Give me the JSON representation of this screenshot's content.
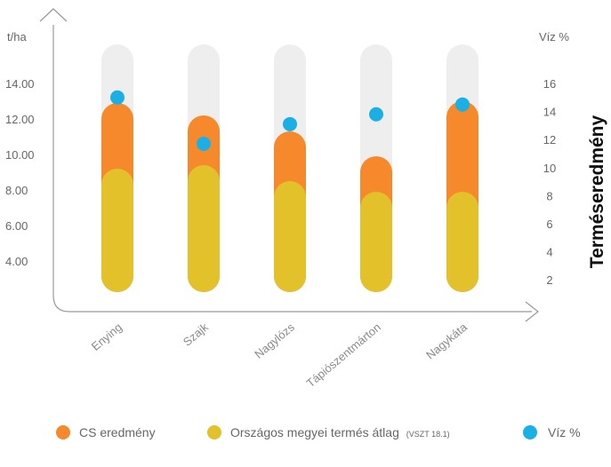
{
  "chart_data": {
    "type": "bar",
    "side_title": "Terméseredmény",
    "left_axis": {
      "unit": "t/ha",
      "ticks": [
        "4.00",
        "6.00",
        "8.00",
        "10.00",
        "12.00",
        "14.00"
      ]
    },
    "right_axis": {
      "unit": "Víz %",
      "ticks": [
        "2",
        "4",
        "6",
        "8",
        "10",
        "12",
        "14",
        "16"
      ]
    },
    "categories": [
      "Enying",
      "Szajk",
      "Nagylózs",
      "Tápiószentmárton",
      "Nagykáta"
    ],
    "series": [
      {
        "name": "CS eredmény",
        "color": "#f5892c",
        "values": [
          12.9,
          12.2,
          11.3,
          9.9,
          13.0
        ]
      },
      {
        "name": "Országos megyei termés átlag",
        "color": "#e3c12a",
        "values": [
          9.2,
          9.4,
          8.5,
          7.9,
          7.9
        ]
      },
      {
        "name": "Víz %",
        "color": "#1ab0e6",
        "values": [
          15.0,
          11.7,
          13.1,
          13.8,
          14.5
        ]
      }
    ],
    "legend": [
      {
        "label": "CS eredmény",
        "note": "",
        "color": "#f5892c"
      },
      {
        "label": "Országos megyei termés átlag",
        "note": "(VSZT 18.1)",
        "color": "#e3c12a"
      },
      {
        "label": "Víz %",
        "note": "",
        "color": "#1ab0e6"
      }
    ],
    "track_color": "#eeeeee",
    "axis_color": "#999999"
  }
}
